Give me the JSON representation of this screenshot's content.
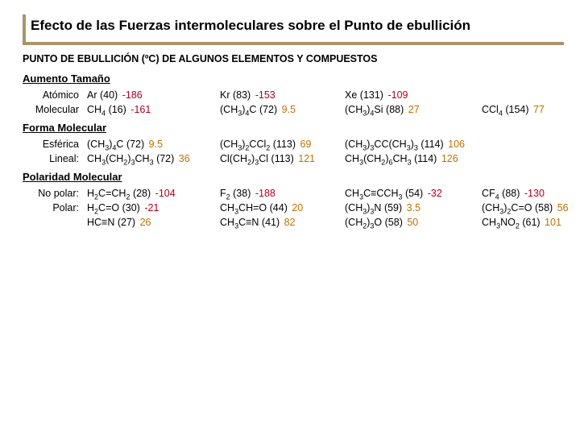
{
  "title": "Efecto de las Fuerzas intermoleculares sobre el Punto de ebullición",
  "subtitle": "PUNTO DE EBULLICIÓN (ºC) DE ALGUNOS ELEMENTOS Y COMPUESTOS",
  "sections": {
    "s1": "Aumento Tamaño",
    "s2": "Forma Molecular",
    "s3": "Polaridad Molecular"
  },
  "labels": {
    "atomico": "Atómico",
    "molecular": "Molecular",
    "esferica": "Esférica",
    "lineal": "Lineal:",
    "nopolar": "No polar:",
    "polar": "Polar:"
  },
  "colors": {
    "neg": "#b00020",
    "pos": "#c07000"
  },
  "rows": {
    "atomico": [
      {
        "f": "Ar",
        "m": "(40)",
        "bp": "-186",
        "neg": true
      },
      {
        "f": "Kr",
        "m": "(83)",
        "bp": "-153",
        "neg": true
      },
      {
        "f": "Xe",
        "m": "(131)",
        "bp": "-109",
        "neg": true
      }
    ],
    "molecular": [
      {
        "f": "CH4",
        "m": "(16)",
        "bp": "-161",
        "neg": true
      },
      {
        "f": "(CH3)4C",
        "m": "(72)",
        "bp": "9.5",
        "neg": false
      },
      {
        "f": "(CH3)4Si",
        "m": "(88)",
        "bp": "27",
        "neg": false
      },
      {
        "f": "CCl4",
        "m": "(154)",
        "bp": "77",
        "neg": false
      }
    ],
    "esferica": [
      {
        "f": "(CH3)4C",
        "m": "(72)",
        "bp": "9.5",
        "neg": false
      },
      {
        "f": "(CH3)2CCl2",
        "m": "(113)",
        "bp": "69",
        "neg": false
      },
      {
        "f": "(CH3)3CC(CH3)3",
        "m": "(114)",
        "bp": "106",
        "neg": false
      }
    ],
    "lineal": [
      {
        "f": "CH3(CH2)3CH3",
        "m": "(72)",
        "bp": "36",
        "neg": false
      },
      {
        "f": "Cl(CH2)3Cl",
        "m": "(113)",
        "bp": "121",
        "neg": false
      },
      {
        "f": "CH3(CH2)6CH3",
        "m": "(114)",
        "bp": "126",
        "neg": false
      }
    ],
    "nopolar": [
      {
        "f": "H2C=CH2",
        "m": "(28)",
        "bp": "-104",
        "neg": true
      },
      {
        "f": "F2",
        "m": "(38)",
        "bp": "-188",
        "neg": true
      },
      {
        "f": "CH3C≡CCH3",
        "m": "(54)",
        "bp": "-32",
        "neg": true
      },
      {
        "f": "CF4",
        "m": "(88)",
        "bp": "-130",
        "neg": true
      }
    ],
    "polar1": [
      {
        "f": "H2C=O",
        "m": "(30)",
        "bp": "-21",
        "neg": true
      },
      {
        "f": "CH3CH=O",
        "m": "(44)",
        "bp": "20",
        "neg": false
      },
      {
        "f": "(CH3)3N",
        "m": "(59)",
        "bp": "3.5",
        "neg": false
      },
      {
        "f": "(CH3)2C=O",
        "m": "(58)",
        "bp": "56",
        "neg": false
      }
    ],
    "polar2": [
      {
        "f": "HC≡N",
        "m": "(27)",
        "bp": "26",
        "neg": false
      },
      {
        "f": "CH3C≡N",
        "m": "(41)",
        "bp": "82",
        "neg": false
      },
      {
        "f": "(CH2)3O",
        "m": "(58)",
        "bp": "50",
        "neg": false
      },
      {
        "f": "CH3NO2",
        "m": "(61)",
        "bp": "101",
        "neg": false
      }
    ]
  }
}
